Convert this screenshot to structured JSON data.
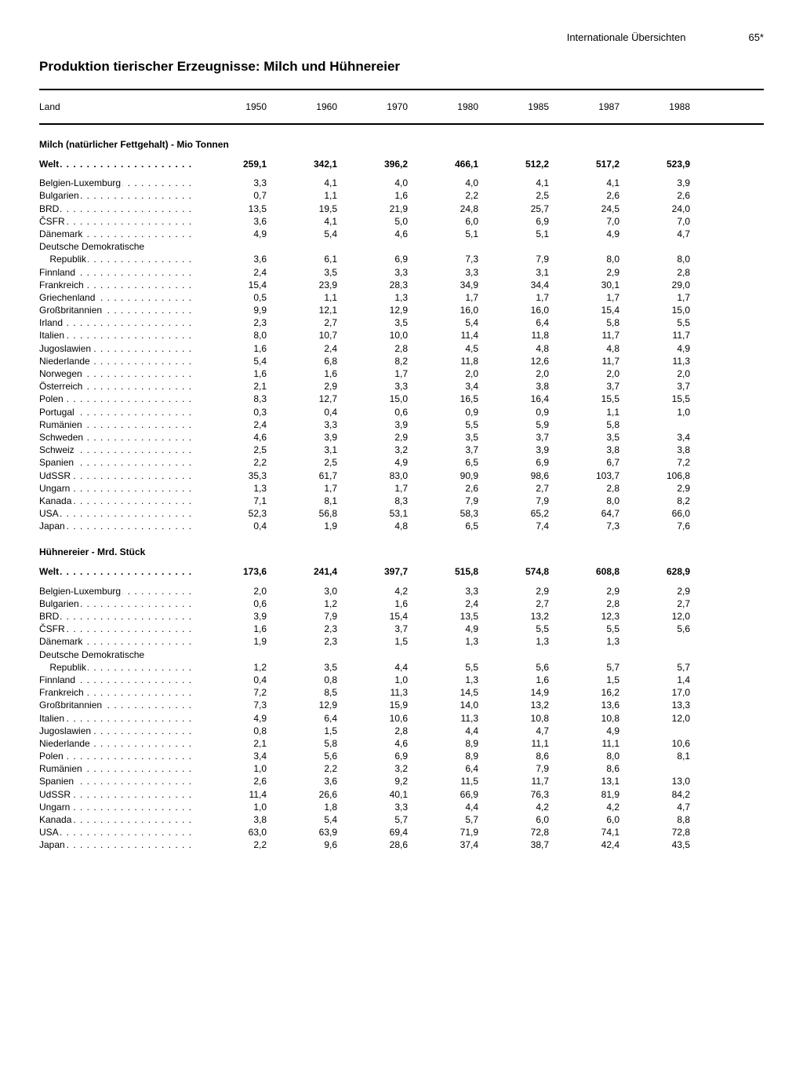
{
  "header": {
    "section": "Internationale Übersichten",
    "page": "65*"
  },
  "title": "Produktion tierischer Erzeugnisse: Milch und Hühnereier",
  "columns": {
    "label": "Land",
    "years": [
      "1950",
      "1960",
      "1970",
      "1980",
      "1985",
      "1987",
      "1988"
    ]
  },
  "sections": [
    {
      "title": "Milch (natürlicher Fettgehalt) - Mio Tonnen",
      "rows": [
        {
          "label": "Welt",
          "bold": true,
          "dotted": true,
          "v": [
            "259,1",
            "342,1",
            "396,2",
            "466,1",
            "512,2",
            "517,2",
            "523,9"
          ]
        },
        {
          "spacer": true
        },
        {
          "label": "Belgien-Luxemburg",
          "dotted": true,
          "v": [
            "3,3",
            "4,1",
            "4,0",
            "4,0",
            "4,1",
            "4,1",
            "3,9"
          ]
        },
        {
          "label": "Bulgarien",
          "dotted": true,
          "v": [
            "0,7",
            "1,1",
            "1,6",
            "2,2",
            "2,5",
            "2,6",
            "2,6"
          ]
        },
        {
          "label": "BRD",
          "dotted": true,
          "v": [
            "13,5",
            "19,5",
            "21,9",
            "24,8",
            "25,7",
            "24,5",
            "24,0"
          ]
        },
        {
          "label": "ČSFR",
          "dotted": true,
          "v": [
            "3,6",
            "4,1",
            "5,0",
            "6,0",
            "6,9",
            "7,0",
            "7,0"
          ]
        },
        {
          "label": "Dänemark",
          "dotted": true,
          "v": [
            "4,9",
            "5,4",
            "4,6",
            "5,1",
            "5,1",
            "4,9",
            "4,7"
          ]
        },
        {
          "label": "Deutsche Demokratische",
          "dotted": false,
          "v": [
            "",
            "",
            "",
            "",
            "",
            "",
            ""
          ]
        },
        {
          "label": "    Republik",
          "dotted": true,
          "indent": true,
          "v": [
            "3,6",
            "6,1",
            "6,9",
            "7,3",
            "7,9",
            "8,0",
            "8,0"
          ]
        },
        {
          "label": "Finnland",
          "dotted": true,
          "v": [
            "2,4",
            "3,5",
            "3,3",
            "3,3",
            "3,1",
            "2,9",
            "2,8"
          ]
        },
        {
          "label": "Frankreich",
          "dotted": true,
          "v": [
            "15,4",
            "23,9",
            "28,3",
            "34,9",
            "34,4",
            "30,1",
            "29,0"
          ]
        },
        {
          "label": "Griechenland",
          "dotted": true,
          "v": [
            "0,5",
            "1,1",
            "1,3",
            "1,7",
            "1,7",
            "1,7",
            "1,7"
          ]
        },
        {
          "label": "Großbritannien",
          "dotted": true,
          "v": [
            "9,9",
            "12,1",
            "12,9",
            "16,0",
            "16,0",
            "15,4",
            "15,0"
          ]
        },
        {
          "label": "Irland",
          "dotted": true,
          "v": [
            "2,3",
            "2,7",
            "3,5",
            "5,4",
            "6,4",
            "5,8",
            "5,5"
          ]
        },
        {
          "label": "Italien",
          "dotted": true,
          "v": [
            "8,0",
            "10,7",
            "10,0",
            "11,4",
            "11,8",
            "11,7",
            "11,7"
          ]
        },
        {
          "label": "Jugoslawien",
          "dotted": true,
          "v": [
            "1,6",
            "2,4",
            "2,8",
            "4,5",
            "4,8",
            "4,8",
            "4,9"
          ]
        },
        {
          "label": "Niederlande",
          "dotted": true,
          "v": [
            "5,4",
            "6,8",
            "8,2",
            "11,8",
            "12,6",
            "11,7",
            "11,3"
          ]
        },
        {
          "label": "Norwegen",
          "dotted": true,
          "v": [
            "1,6",
            "1,6",
            "1,7",
            "2,0",
            "2,0",
            "2,0",
            "2,0"
          ]
        },
        {
          "label": "Österreich",
          "dotted": true,
          "v": [
            "2,1",
            "2,9",
            "3,3",
            "3,4",
            "3,8",
            "3,7",
            "3,7"
          ]
        },
        {
          "label": "Polen",
          "dotted": true,
          "v": [
            "8,3",
            "12,7",
            "15,0",
            "16,5",
            "16,4",
            "15,5",
            "15,5"
          ]
        },
        {
          "label": "Portugal",
          "dotted": true,
          "v": [
            "0,3",
            "0,4",
            "0,6",
            "0,9",
            "0,9",
            "1,1",
            "1,0"
          ]
        },
        {
          "label": "Rumänien",
          "dotted": true,
          "v": [
            "2,4",
            "3,3",
            "3,9",
            "5,5",
            "5,9",
            "5,8",
            ""
          ]
        },
        {
          "label": "Schweden",
          "dotted": true,
          "v": [
            "4,6",
            "3,9",
            "2,9",
            "3,5",
            "3,7",
            "3,5",
            "3,4"
          ]
        },
        {
          "label": "Schweiz",
          "dotted": true,
          "v": [
            "2,5",
            "3,1",
            "3,2",
            "3,7",
            "3,9",
            "3,8",
            "3,8"
          ]
        },
        {
          "label": "Spanien",
          "dotted": true,
          "v": [
            "2,2",
            "2,5",
            "4,9",
            "6,5",
            "6,9",
            "6,7",
            "7,2"
          ]
        },
        {
          "label": "UdSSR",
          "dotted": true,
          "v": [
            "35,3",
            "61,7",
            "83,0",
            "90,9",
            "98,6",
            "103,7",
            "106,8"
          ]
        },
        {
          "label": "Ungarn",
          "dotted": true,
          "v": [
            "1,3",
            "1,7",
            "1,7",
            "2,6",
            "2,7",
            "2,8",
            "2,9"
          ]
        },
        {
          "label": "Kanada",
          "dotted": true,
          "v": [
            "7,1",
            "8,1",
            "8,3",
            "7,9",
            "7,9",
            "8,0",
            "8,2"
          ]
        },
        {
          "label": "USA",
          "dotted": true,
          "v": [
            "52,3",
            "56,8",
            "53,1",
            "58,3",
            "65,2",
            "64,7",
            "66,0"
          ]
        },
        {
          "label": "Japan",
          "dotted": true,
          "v": [
            "0,4",
            "1,9",
            "4,8",
            "6,5",
            "7,4",
            "7,3",
            "7,6"
          ]
        }
      ]
    },
    {
      "title": "Hühnereier - Mrd. Stück",
      "rows": [
        {
          "label": "Welt",
          "bold": true,
          "dotted": true,
          "v": [
            "173,6",
            "241,4",
            "397,7",
            "515,8",
            "574,8",
            "608,8",
            "628,9"
          ]
        },
        {
          "spacer": true
        },
        {
          "label": "Belgien-Luxemburg",
          "dotted": true,
          "v": [
            "2,0",
            "3,0",
            "4,2",
            "3,3",
            "2,9",
            "2,9",
            "2,9"
          ]
        },
        {
          "label": "Bulgarien",
          "dotted": true,
          "v": [
            "0,6",
            "1,2",
            "1,6",
            "2,4",
            "2,7",
            "2,8",
            "2,7"
          ]
        },
        {
          "label": "BRD",
          "dotted": true,
          "v": [
            "3,9",
            "7,9",
            "15,4",
            "13,5",
            "13,2",
            "12,3",
            "12,0"
          ]
        },
        {
          "label": "ČSFR",
          "dotted": true,
          "v": [
            "1,6",
            "2,3",
            "3,7",
            "4,9",
            "5,5",
            "5,5",
            "5,6"
          ]
        },
        {
          "label": "Dänemark",
          "dotted": true,
          "v": [
            "1,9",
            "2,3",
            "1,5",
            "1,3",
            "1,3",
            "1,3",
            ""
          ]
        },
        {
          "label": "Deutsche Demokratische",
          "dotted": false,
          "v": [
            "",
            "",
            "",
            "",
            "",
            "",
            ""
          ]
        },
        {
          "label": "    Republik",
          "dotted": true,
          "indent": true,
          "v": [
            "1,2",
            "3,5",
            "4,4",
            "5,5",
            "5,6",
            "5,7",
            "5,7"
          ]
        },
        {
          "label": "Finnland",
          "dotted": true,
          "v": [
            "0,4",
            "0,8",
            "1,0",
            "1,3",
            "1,6",
            "1,5",
            "1,4"
          ]
        },
        {
          "label": "Frankreich",
          "dotted": true,
          "v": [
            "7,2",
            "8,5",
            "11,3",
            "14,5",
            "14,9",
            "16,2",
            "17,0"
          ]
        },
        {
          "label": "Großbritannien",
          "dotted": true,
          "v": [
            "7,3",
            "12,9",
            "15,9",
            "14,0",
            "13,2",
            "13,6",
            "13,3"
          ]
        },
        {
          "label": "Italien",
          "dotted": true,
          "v": [
            "4,9",
            "6,4",
            "10,6",
            "11,3",
            "10,8",
            "10,8",
            "12,0"
          ]
        },
        {
          "label": "Jugoslawien",
          "dotted": true,
          "v": [
            "0,8",
            "1,5",
            "2,8",
            "4,4",
            "4,7",
            "4,9",
            ""
          ]
        },
        {
          "label": "Niederlande",
          "dotted": true,
          "v": [
            "2,1",
            "5,8",
            "4,6",
            "8,9",
            "11,1",
            "11,1",
            "10,6"
          ]
        },
        {
          "label": "Polen",
          "dotted": true,
          "v": [
            "3,4",
            "5,6",
            "6,9",
            "8,9",
            "8,6",
            "8,0",
            "8,1"
          ]
        },
        {
          "label": "Rumänien",
          "dotted": true,
          "v": [
            "1,0",
            "2,2",
            "3,2",
            "6,4",
            "7,9",
            "8,6",
            ""
          ]
        },
        {
          "label": "Spanien",
          "dotted": true,
          "v": [
            "2,6",
            "3,6",
            "9,2",
            "11,5",
            "11,7",
            "13,1",
            "13,0"
          ]
        },
        {
          "label": "UdSSR",
          "dotted": true,
          "v": [
            "11,4",
            "26,6",
            "40,1",
            "66,9",
            "76,3",
            "81,9",
            "84,2"
          ]
        },
        {
          "label": "Ungarn",
          "dotted": true,
          "v": [
            "1,0",
            "1,8",
            "3,3",
            "4,4",
            "4,2",
            "4,2",
            "4,7"
          ]
        },
        {
          "label": "Kanada",
          "dotted": true,
          "v": [
            "3,8",
            "5,4",
            "5,7",
            "5,7",
            "6,0",
            "6,0",
            "8,8"
          ]
        },
        {
          "label": "USA",
          "dotted": true,
          "v": [
            "63,0",
            "63,9",
            "69,4",
            "71,9",
            "72,8",
            "74,1",
            "72,8"
          ]
        },
        {
          "label": "Japan",
          "dotted": true,
          "v": [
            "2,2",
            "9,6",
            "28,6",
            "37,4",
            "38,7",
            "42,4",
            "43,5"
          ]
        }
      ]
    }
  ]
}
